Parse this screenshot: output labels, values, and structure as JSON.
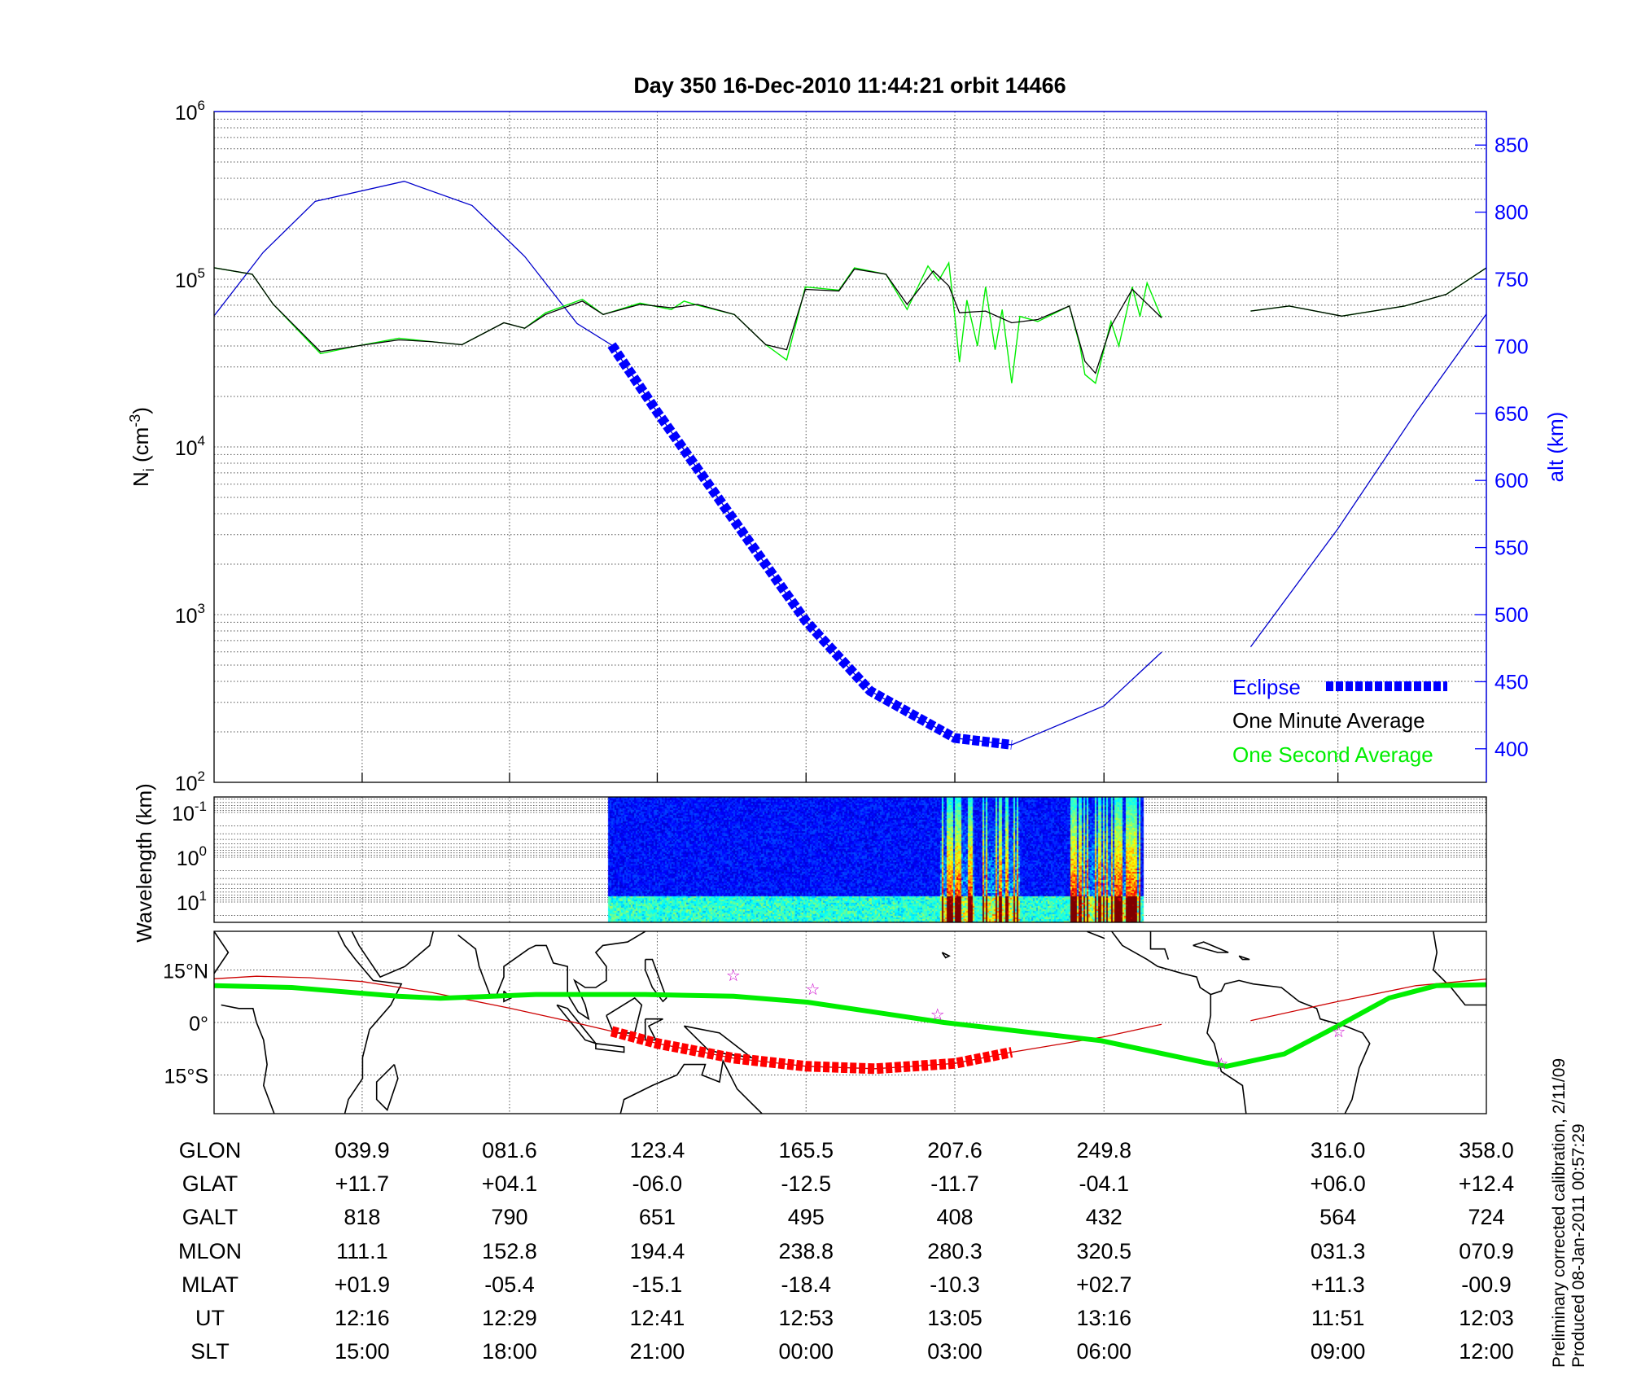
{
  "title": "Day 350  16-Dec-2010 11:44:21   orbit 14466",
  "side_notes": [
    "Preliminary corrected calibration, 2/11/09",
    "Produced 08-Jan-2011 00:57:29"
  ],
  "colors": {
    "altitude": "#0000cc",
    "eclipse": "#0000ff",
    "one_minute": "#000000",
    "one_second": "#00ee00",
    "track_eclipse": "#ff0000",
    "track": "#cc0000",
    "mag_equator": "#00ee00",
    "stars": "#cc00cc"
  },
  "chart_data": [
    {
      "type": "line",
      "title": "Day 350  16-Dec-2010 11:44:21   orbit 14466",
      "ylabel": "N_i (cm^-3)",
      "ylabel_parts": {
        "base": "N",
        "sub": "i",
        "unit_pre": " (cm",
        "sup": "-3",
        "unit_post": ")"
      },
      "yscale": "log",
      "ylim": [
        100,
        1000000
      ],
      "yticks": [
        {
          "base": "10",
          "exp": "2"
        },
        {
          "base": "10",
          "exp": "3"
        },
        {
          "base": "10",
          "exp": "4"
        },
        {
          "base": "10",
          "exp": "5"
        },
        {
          "base": "10",
          "exp": "6"
        }
      ],
      "y2label": "alt (km)",
      "y2lim": [
        375,
        875
      ],
      "y2ticks": [
        400,
        450,
        500,
        550,
        600,
        650,
        700,
        750,
        800,
        850
      ],
      "xlim_glon": [
        -2,
        358
      ],
      "grid": true,
      "legend": {
        "placement": "bottom-right",
        "entries": [
          "Eclipse",
          "One Minute Average",
          "One Second Average"
        ]
      },
      "series": [
        {
          "name": "One Minute Average",
          "segments": [
            [
              [
                -1.9,
                117000
              ],
              [
                8.8,
                107000
              ],
              [
                14.7,
                71000
              ],
              [
                28.1,
                37000
              ],
              [
                38.4,
                40000
              ],
              [
                50.3,
                43500
              ],
              [
                59.2,
                42500
              ],
              [
                68.1,
                40700
              ],
              [
                80.0,
                55000
              ],
              [
                85.9,
                51000
              ],
              [
                91.8,
                61600
              ],
              [
                102.2,
                74000
              ],
              [
                108.1,
                61600
              ],
              [
                118.5,
                70800
              ],
              [
                127.4,
                67600
              ],
              [
                134.8,
                70800
              ],
              [
                145.2,
                61600
              ],
              [
                154.1,
                40700
              ],
              [
                160.0,
                38000
              ],
              [
                165.3,
                87000
              ],
              [
                174.8,
                85100
              ],
              [
                179.2,
                115000
              ],
              [
                188.1,
                107000
              ],
              [
                194.1,
                70800
              ],
              [
                201.5,
                112000
              ],
              [
                205.9,
                91200
              ],
              [
                208.9,
                63100
              ],
              [
                216.3,
                64600
              ],
              [
                223.7,
                55000
              ],
              [
                231.1,
                57500
              ],
              [
                240.0,
                69200
              ],
              [
                244.4,
                32400
              ],
              [
                247.4,
                27500
              ],
              [
                251.8,
                52500
              ],
              [
                257.8,
                87100
              ],
              [
                266.1,
                58900
              ]
            ],
            [
              [
                291.3,
                64600
              ],
              [
                302.2,
                69200
              ],
              [
                317.1,
                60300
              ],
              [
                334.9,
                69200
              ],
              [
                346.7,
                81300
              ],
              [
                358.0,
                117000
              ]
            ]
          ]
        },
        {
          "name": "One Second Average",
          "segments": [
            [
              [
                -1.9,
                117000
              ],
              [
                8.8,
                107000
              ],
              [
                14.7,
                71000
              ],
              [
                28.1,
                36000
              ],
              [
                38.4,
                40000
              ],
              [
                50.3,
                44500
              ],
              [
                59.2,
                42500
              ],
              [
                68.1,
                40700
              ],
              [
                80.0,
                55000
              ],
              [
                85.9,
                51000
              ],
              [
                91.8,
                63000
              ],
              [
                102.2,
                76000
              ],
              [
                108.1,
                61600
              ],
              [
                118.5,
                72000
              ],
              [
                127.4,
                66000
              ],
              [
                131.0,
                74000
              ],
              [
                134.8,
                70000
              ],
              [
                145.2,
                61600
              ],
              [
                154.1,
                40700
              ],
              [
                160.0,
                33000
              ],
              [
                165.3,
                90000
              ],
              [
                174.8,
                86000
              ],
              [
                179.2,
                117000
              ],
              [
                188.1,
                107000
              ],
              [
                194.1,
                66000
              ],
              [
                200.0,
                120000
              ],
              [
                203.0,
                98000
              ],
              [
                205.9,
                125000
              ],
              [
                207.6,
                60000
              ],
              [
                208.9,
                32000
              ],
              [
                211.0,
                75000
              ],
              [
                214.0,
                40000
              ],
              [
                216.3,
                90000
              ],
              [
                219.0,
                38000
              ],
              [
                221.0,
                66000
              ],
              [
                223.7,
                24000
              ],
              [
                226.0,
                60000
              ],
              [
                231.1,
                56000
              ],
              [
                240.0,
                69200
              ],
              [
                243.0,
                40000
              ],
              [
                244.4,
                27000
              ],
              [
                247.4,
                24000
              ],
              [
                251.8,
                56000
              ],
              [
                254.0,
                40000
              ],
              [
                257.8,
                90000
              ],
              [
                260.0,
                60000
              ],
              [
                262.0,
                95000
              ],
              [
                266.1,
                58900
              ]
            ],
            [
              [
                291.3,
                64600
              ],
              [
                302.2,
                69200
              ],
              [
                317.1,
                60300
              ],
              [
                334.9,
                69200
              ],
              [
                346.7,
                81300
              ],
              [
                358.0,
                117000
              ]
            ]
          ]
        },
        {
          "name": "alt (km)",
          "axis": "right",
          "segments": [
            [
              [
                -1.9,
                723
              ],
              [
                11.9,
                770
              ],
              [
                26.6,
                808
              ],
              [
                51.8,
                823
              ],
              [
                71.0,
                805
              ],
              [
                85.9,
                767
              ],
              [
                100.7,
                717
              ],
              [
                110.5,
                701
              ],
              [
                123.4,
                651
              ],
              [
                145.2,
                570
              ],
              [
                165.5,
                495
              ],
              [
                183.7,
                443
              ],
              [
                207.6,
                408
              ],
              [
                223.7,
                403
              ],
              [
                249.8,
                432
              ],
              [
                266.1,
                472
              ]
            ],
            [
              [
                291.3,
                476
              ],
              [
                316.0,
                564
              ],
              [
                337.9,
                650
              ],
              [
                358.0,
                724
              ]
            ]
          ]
        }
      ],
      "eclipse_glon_range": [
        110.5,
        223.7
      ]
    },
    {
      "type": "heatmap",
      "ylabel": "Wavelength (km)",
      "yscale": "log",
      "yticks": [
        {
          "base": "10",
          "exp": "-1"
        },
        {
          "base": "10",
          "exp": "0"
        },
        {
          "base": "10",
          "exp": "1"
        }
      ],
      "data_glon_range": [
        109.6,
        260.8
      ],
      "colormap": "jet",
      "active_glon_bands": [
        [
          203,
          213
        ],
        [
          215,
          226
        ],
        [
          240,
          260
        ]
      ]
    },
    {
      "type": "scatter",
      "lat_labels": [
        "15°N",
        "0°",
        "15°S"
      ],
      "lat_ticks": [
        15,
        0,
        -15
      ],
      "ylim": [
        -26,
        26
      ],
      "ground_track": [
        [
          [
            -2,
            12.5
          ],
          [
            10,
            13.2
          ],
          [
            25,
            12.8
          ],
          [
            39.9,
            11.7
          ],
          [
            60,
            8.5
          ],
          [
            81.6,
            4.1
          ],
          [
            100,
            0
          ],
          [
            110.5,
            -2.5
          ],
          [
            123.4,
            -6.0
          ],
          [
            145,
            -10.2
          ],
          [
            165.5,
            -12.5
          ],
          [
            185,
            -13.2
          ],
          [
            207.6,
            -11.7
          ],
          [
            223.7,
            -8.5
          ],
          [
            249.8,
            -4.1
          ],
          [
            266.1,
            -0.5
          ]
        ],
        [
          [
            291.3,
            0.5
          ],
          [
            316.0,
            6.0
          ],
          [
            338,
            10.5
          ],
          [
            358.0,
            12.4
          ]
        ]
      ],
      "magnetic_equator": [
        [
          -2,
          10.5
        ],
        [
          20,
          10.0
        ],
        [
          50,
          7.5
        ],
        [
          62,
          6.9
        ],
        [
          89,
          8.0
        ],
        [
          120,
          8.0
        ],
        [
          145,
          7.5
        ],
        [
          166,
          5.8
        ],
        [
          204.5,
          0
        ],
        [
          249,
          -5.2
        ],
        [
          278.6,
          -11.5
        ],
        [
          284.5,
          -12.5
        ],
        [
          300.8,
          -9.0
        ],
        [
          316,
          -1.0
        ],
        [
          330.5,
          7.0
        ],
        [
          343.8,
          10.5
        ],
        [
          358,
          10.8
        ]
      ],
      "stars": [
        [
          144.9,
          13.5
        ],
        [
          167.4,
          9.5
        ],
        [
          202.7,
          2.3
        ],
        [
          283.0,
          -11.8
        ],
        [
          316.2,
          -2.6
        ]
      ]
    }
  ],
  "table": {
    "glon_positions": [
      39.9,
      81.6,
      123.4,
      165.5,
      207.6,
      249.8,
      316.0,
      358.0
    ],
    "rows": [
      {
        "label": "GLON",
        "values": [
          "039.9",
          "081.6",
          "123.4",
          "165.5",
          "207.6",
          "249.8",
          "316.0",
          "358.0"
        ]
      },
      {
        "label": "GLAT",
        "values": [
          "+11.7",
          "+04.1",
          "-06.0",
          "-12.5",
          "-11.7",
          "-04.1",
          "+06.0",
          "+12.4"
        ]
      },
      {
        "label": "GALT",
        "values": [
          "818",
          "790",
          "651",
          "495",
          "408",
          "432",
          "564",
          "724"
        ]
      },
      {
        "label": "MLON",
        "values": [
          "111.1",
          "152.8",
          "194.4",
          "238.8",
          "280.3",
          "320.5",
          "031.3",
          "070.9"
        ]
      },
      {
        "label": "MLAT",
        "values": [
          "+01.9",
          "-05.4",
          "-15.1",
          "-18.4",
          "-10.3",
          "+02.7",
          "+11.3",
          "-00.9"
        ]
      },
      {
        "label": "UT",
        "values": [
          "12:16",
          "12:29",
          "12:41",
          "12:53",
          "13:05",
          "13:16",
          "11:51",
          "12:03"
        ]
      },
      {
        "label": "SLT",
        "values": [
          "15:00",
          "18:00",
          "21:00",
          "00:00",
          "03:00",
          "06:00",
          "09:00",
          "12:00"
        ]
      }
    ]
  }
}
